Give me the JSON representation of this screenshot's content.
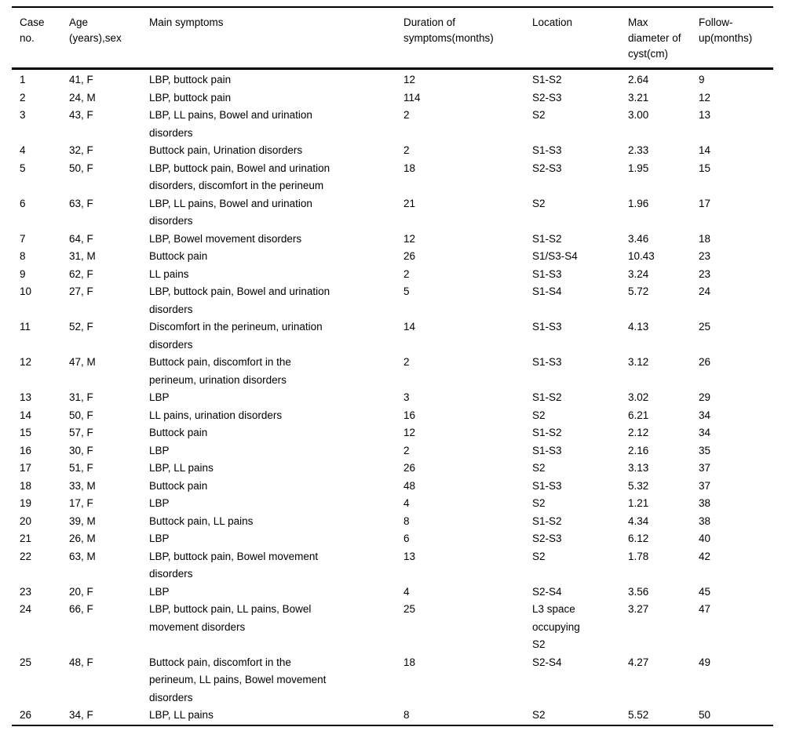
{
  "table": {
    "columns": [
      {
        "id": "case_no",
        "label": "Case\nno."
      },
      {
        "id": "age_sex",
        "label": "Age\n(years),sex"
      },
      {
        "id": "main_symptoms",
        "label": "Main symptoms"
      },
      {
        "id": "duration",
        "label": "Duration of\nsymptoms(months)"
      },
      {
        "id": "location",
        "label": "Location"
      },
      {
        "id": "max_diameter",
        "label": "Max\ndiameter of\ncyst(cm)"
      },
      {
        "id": "follow_up",
        "label": "Follow-\nup(months)"
      }
    ],
    "rows": [
      [
        "1",
        "41, F",
        "LBP, buttock pain",
        "12",
        "S1-S2",
        "2.64",
        "9"
      ],
      [
        "2",
        "24, M",
        "LBP, buttock pain",
        "114",
        "S2-S3",
        "3.21",
        "12"
      ],
      [
        "3",
        "43, F",
        "LBP, LL pains, Bowel and urination\ndisorders",
        "2",
        "S2",
        "3.00",
        "13"
      ],
      [
        "4",
        "32, F",
        "Buttock pain, Urination disorders",
        "2",
        "S1-S3",
        "2.33",
        "14"
      ],
      [
        "5",
        "50, F",
        "LBP, buttock pain, Bowel and urination\ndisorders, discomfort in the perineum",
        "18",
        "S2-S3",
        "1.95",
        "15"
      ],
      [
        "6",
        "63, F",
        "LBP, LL pains, Bowel and urination\ndisorders",
        "21",
        "S2",
        "1.96",
        "17"
      ],
      [
        "7",
        "64, F",
        "LBP, Bowel movement disorders",
        "12",
        "S1-S2",
        "3.46",
        "18"
      ],
      [
        "8",
        "31, M",
        "Buttock pain",
        "26",
        "S1/S3-S4",
        "10.43",
        "23"
      ],
      [
        "9",
        "62, F",
        "LL pains",
        "2",
        "S1-S3",
        "3.24",
        "23"
      ],
      [
        "10",
        "27, F",
        "LBP, buttock pain, Bowel and urination\ndisorders",
        "5",
        "S1-S4",
        "5.72",
        "24"
      ],
      [
        "11",
        "52, F",
        "Discomfort in the perineum, urination\ndisorders",
        "14",
        "S1-S3",
        "4.13",
        "25"
      ],
      [
        "12",
        "47, M",
        "Buttock pain, discomfort in the\nperineum, urination disorders",
        "2",
        "S1-S3",
        "3.12",
        "26"
      ],
      [
        "13",
        "31, F",
        "LBP",
        "3",
        "S1-S2",
        "3.02",
        "29"
      ],
      [
        "14",
        "50, F",
        "LL pains, urination disorders",
        "16",
        "S2",
        "6.21",
        "34"
      ],
      [
        "15",
        "57, F",
        "Buttock pain",
        "12",
        "S1-S2",
        "2.12",
        "34"
      ],
      [
        "16",
        "30, F",
        "LBP",
        "2",
        "S1-S3",
        "2.16",
        "35"
      ],
      [
        "17",
        "51, F",
        "LBP, LL pains",
        "26",
        "S2",
        "3.13",
        "37"
      ],
      [
        "18",
        "33, M",
        "Buttock pain",
        "48",
        "S1-S3",
        "5.32",
        "37"
      ],
      [
        "19",
        "17, F",
        "LBP",
        "4",
        "S2",
        "1.21",
        "38"
      ],
      [
        "20",
        "39, M",
        "Buttock pain, LL pains",
        "8",
        "S1-S2",
        "4.34",
        "38"
      ],
      [
        "21",
        "26, M",
        "LBP",
        "6",
        "S2-S3",
        "6.12",
        "40"
      ],
      [
        "22",
        "63, M",
        "LBP, buttock pain, Bowel movement\ndisorders",
        "13",
        "S2",
        "1.78",
        "42"
      ],
      [
        "23",
        "20, F",
        "LBP",
        "4",
        "S2-S4",
        "3.56",
        "45"
      ],
      [
        "24",
        "66, F",
        "LBP, buttock pain, LL pains, Bowel\nmovement disorders",
        "25",
        "L3 space\noccupying\nS2",
        "3.27",
        "47"
      ],
      [
        "25",
        "48, F",
        "Buttock pain, discomfort in the\nperineum, LL pains, Bowel movement\ndisorders",
        "18",
        "S2-S4",
        "4.27",
        "49"
      ],
      [
        "26",
        "34, F",
        "LBP, LL pains",
        "8",
        "S2",
        "5.52",
        "50"
      ]
    ]
  }
}
